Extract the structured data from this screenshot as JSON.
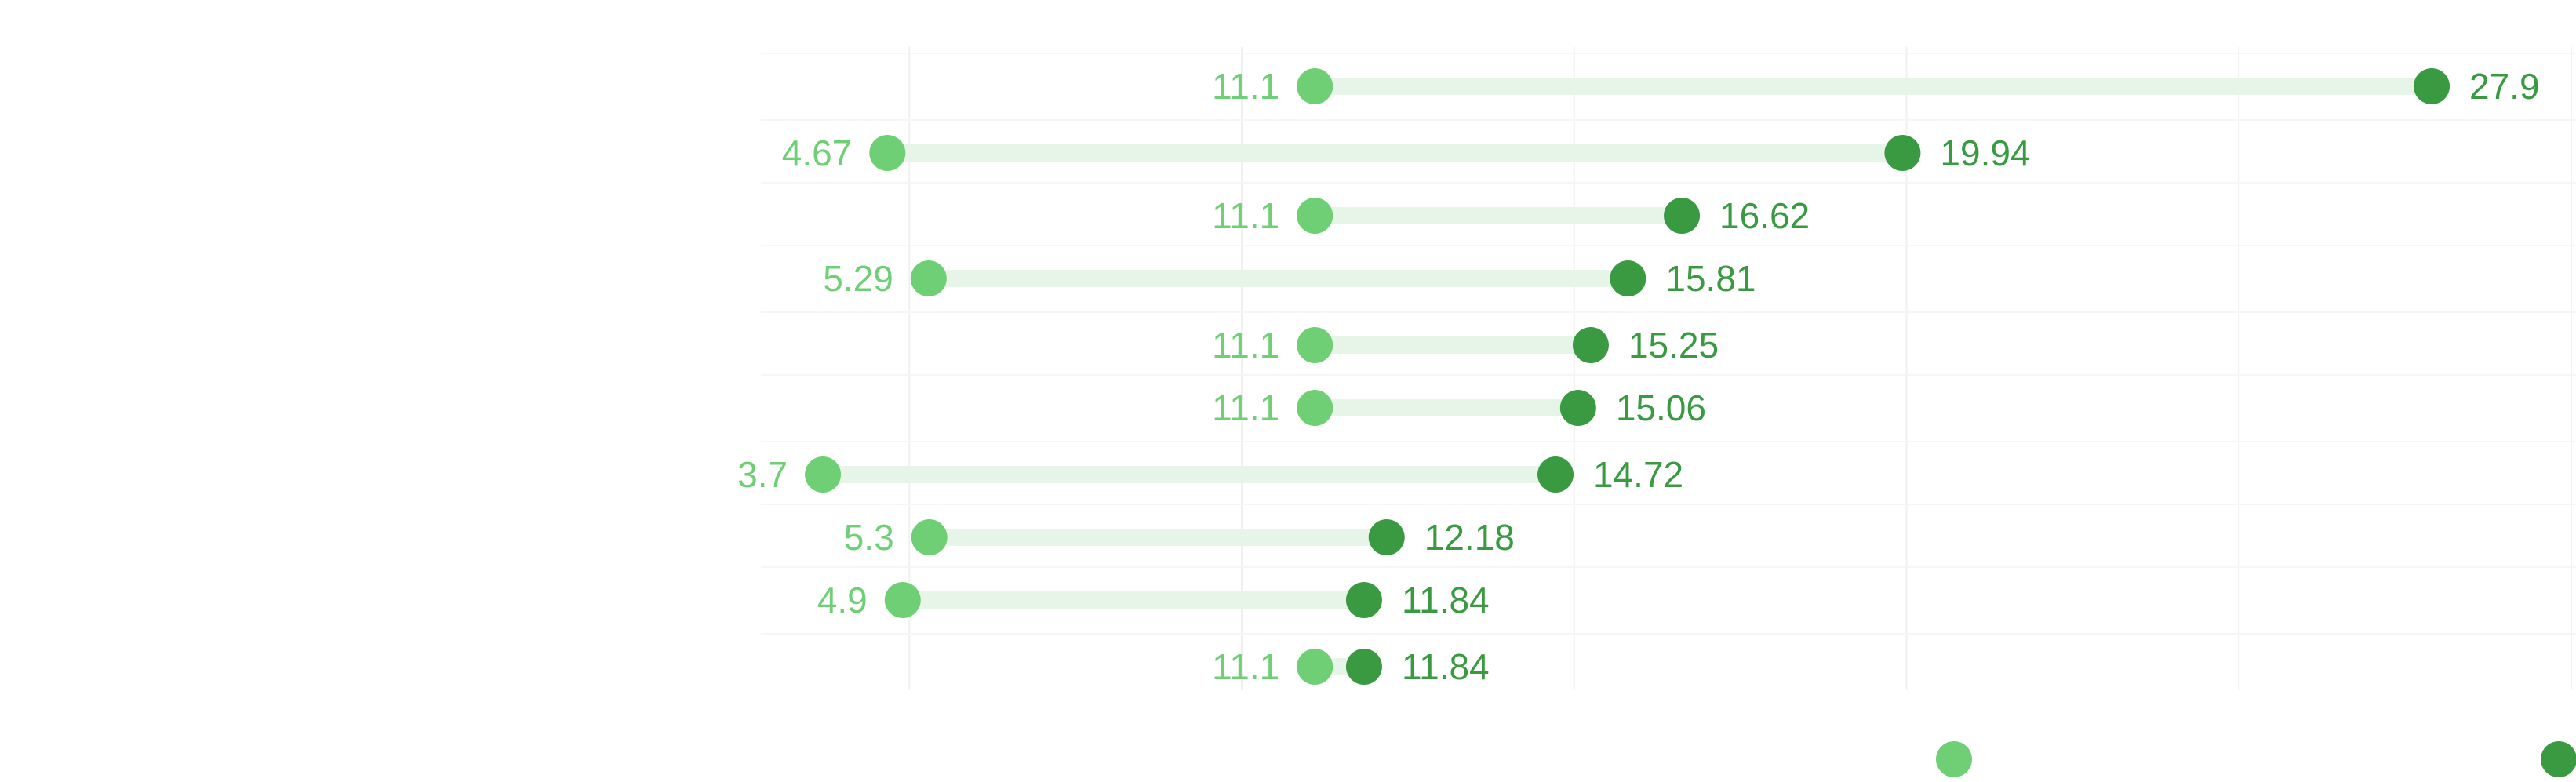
{
  "chart_data": {
    "type": "dumbbell",
    "title": "",
    "xlabel": "",
    "ylabel": "",
    "xlim": [
      0,
      30
    ],
    "grid": true,
    "legend": "bottom-right",
    "colors": {
      "start": "#6fcf75",
      "end": "#3a9a41",
      "bar": "#e6f5e7",
      "grid": "#f0f0f0"
    },
    "rows": [
      {
        "start": 11.1,
        "end": 27.9,
        "start_label": "11.1",
        "end_label": "27.9"
      },
      {
        "start": 4.67,
        "end": 19.94,
        "start_label": "4.67",
        "end_label": "19.94"
      },
      {
        "start": 11.1,
        "end": 16.62,
        "start_label": "11.1",
        "end_label": "16.62"
      },
      {
        "start": 5.29,
        "end": 15.81,
        "start_label": "5.29",
        "end_label": "15.81"
      },
      {
        "start": 11.1,
        "end": 15.25,
        "start_label": "11.1",
        "end_label": "15.25"
      },
      {
        "start": 11.1,
        "end": 15.06,
        "start_label": "11.1",
        "end_label": "15.06"
      },
      {
        "start": 3.7,
        "end": 14.72,
        "start_label": "3.7",
        "end_label": "14.72"
      },
      {
        "start": 5.3,
        "end": 12.18,
        "start_label": "5.3",
        "end_label": "12.18"
      },
      {
        "start": 4.9,
        "end": 11.84,
        "start_label": "4.9",
        "end_label": "11.84"
      },
      {
        "start": 11.1,
        "end": 11.84,
        "start_label": "11.1",
        "end_label": "11.84"
      }
    ]
  }
}
